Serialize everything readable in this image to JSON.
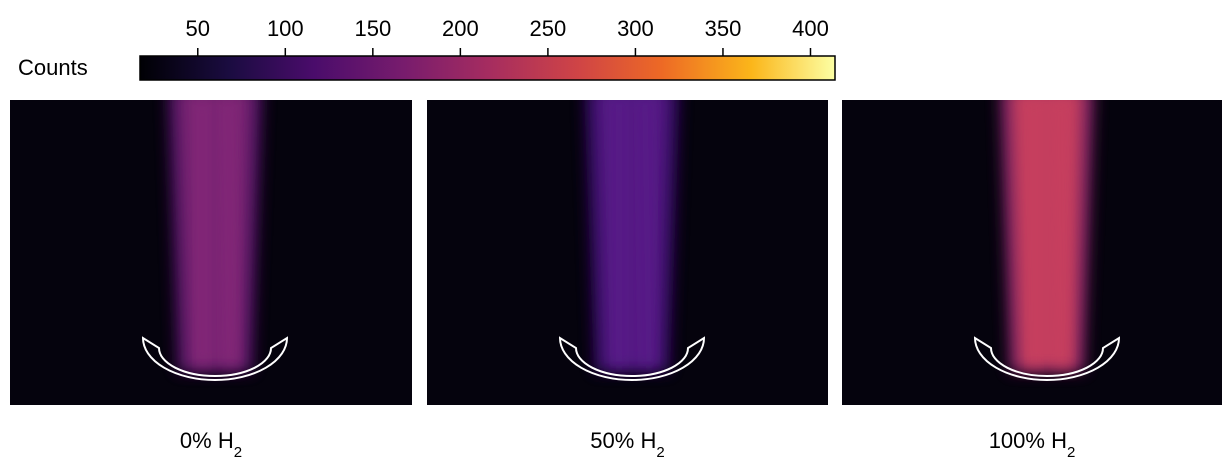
{
  "colorbar": {
    "label": "Counts",
    "clim": [
      17,
      414
    ],
    "ticks": [
      50,
      100,
      150,
      200,
      250,
      300,
      350,
      400
    ]
  },
  "panels": [
    {
      "label": {
        "text": "0% H",
        "subscript": "2"
      }
    },
    {
      "label": {
        "text": "50% H",
        "subscript": "2"
      }
    },
    {
      "label": {
        "text": "100% H",
        "subscript": "2"
      }
    }
  ]
}
